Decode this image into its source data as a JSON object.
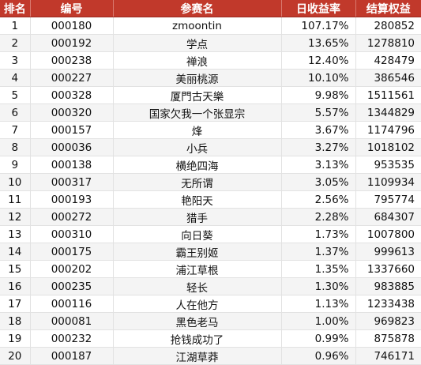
{
  "table": {
    "headers": [
      "排名",
      "编号",
      "参赛名",
      "日收益率",
      "结算权益"
    ],
    "rows": [
      [
        "1",
        "000180",
        "zmoontin",
        "107.17%",
        "280852"
      ],
      [
        "2",
        "000192",
        "学点",
        "13.65%",
        "1278810"
      ],
      [
        "3",
        "000238",
        "禅浪",
        "12.40%",
        "428479"
      ],
      [
        "4",
        "000227",
        "美丽桃源",
        "10.10%",
        "386546"
      ],
      [
        "5",
        "000328",
        "厦門古天樂",
        "9.98%",
        "1511561"
      ],
      [
        "6",
        "000320",
        "国家欠我一个张显宗",
        "5.57%",
        "1344829"
      ],
      [
        "7",
        "000157",
        "烽",
        "3.67%",
        "1174796"
      ],
      [
        "8",
        "000036",
        "小兵",
        "3.27%",
        "1018102"
      ],
      [
        "9",
        "000138",
        "横绝四海",
        "3.13%",
        "953535"
      ],
      [
        "10",
        "000317",
        "无所谓",
        "3.05%",
        "1109934"
      ],
      [
        "11",
        "000193",
        "艳阳天",
        "2.56%",
        "795774"
      ],
      [
        "12",
        "000272",
        "猎手",
        "2.28%",
        "684307"
      ],
      [
        "13",
        "000310",
        "向日葵",
        "1.73%",
        "1007800"
      ],
      [
        "14",
        "000175",
        "霸王别姬",
        "1.37%",
        "999613"
      ],
      [
        "15",
        "000202",
        "浦江草根",
        "1.35%",
        "1337660"
      ],
      [
        "16",
        "000235",
        "轻长",
        "1.30%",
        "983885"
      ],
      [
        "17",
        "000116",
        "人在他方",
        "1.13%",
        "1233438"
      ],
      [
        "18",
        "000081",
        "黑色老马",
        "1.00%",
        "969823"
      ],
      [
        "19",
        "000232",
        "抢钱成功了",
        "0.99%",
        "875878"
      ],
      [
        "20",
        "000187",
        "江湖草莽",
        "0.96%",
        "746171"
      ]
    ]
  }
}
